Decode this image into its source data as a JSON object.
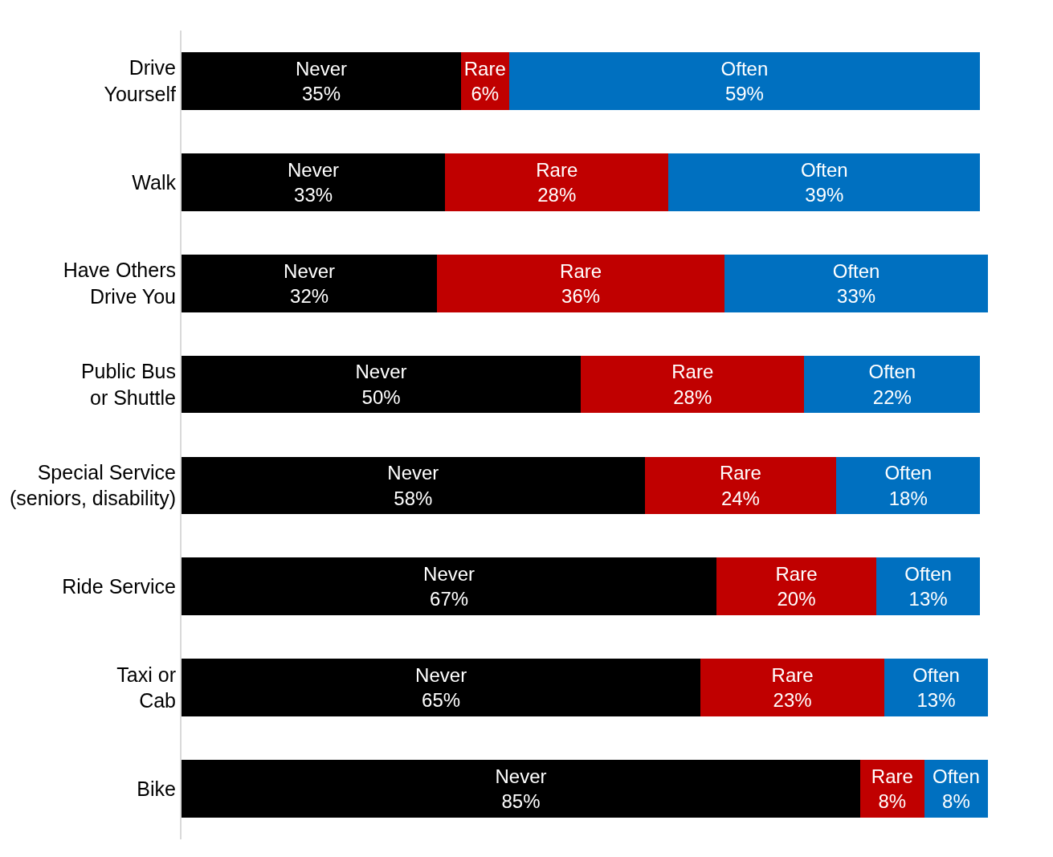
{
  "chart_data": {
    "type": "bar",
    "orientation": "horizontal",
    "stacked": true,
    "legend": false,
    "tick_labels": "y",
    "categories": [
      "Drive\nYourself",
      "Walk",
      "Have Others\nDrive You",
      "Public Bus\nor Shuttle",
      "Special Service\n(seniors, disability)",
      "Ride Service",
      "Taxi or\nCab",
      "Bike"
    ],
    "series": [
      {
        "name": "Never",
        "color": "#000000",
        "values": [
          35,
          33,
          32,
          50,
          58,
          67,
          65,
          85
        ],
        "value_labels": [
          "35%",
          "33%",
          "32%",
          "50%",
          "58%",
          "67%",
          "65%",
          "85%"
        ]
      },
      {
        "name": "Rare",
        "color": "#c00000",
        "values": [
          6,
          28,
          36,
          28,
          24,
          20,
          23,
          8
        ],
        "value_labels": [
          "6%",
          "28%",
          "36%",
          "28%",
          "24%",
          "20%",
          "23%",
          "8%"
        ]
      },
      {
        "name": "Often",
        "color": "#0070c0",
        "values": [
          59,
          39,
          33,
          22,
          18,
          13,
          13,
          8
        ],
        "value_labels": [
          "59%",
          "39%",
          "33%",
          "22%",
          "18%",
          "13%",
          "13%",
          "8%"
        ]
      }
    ]
  }
}
